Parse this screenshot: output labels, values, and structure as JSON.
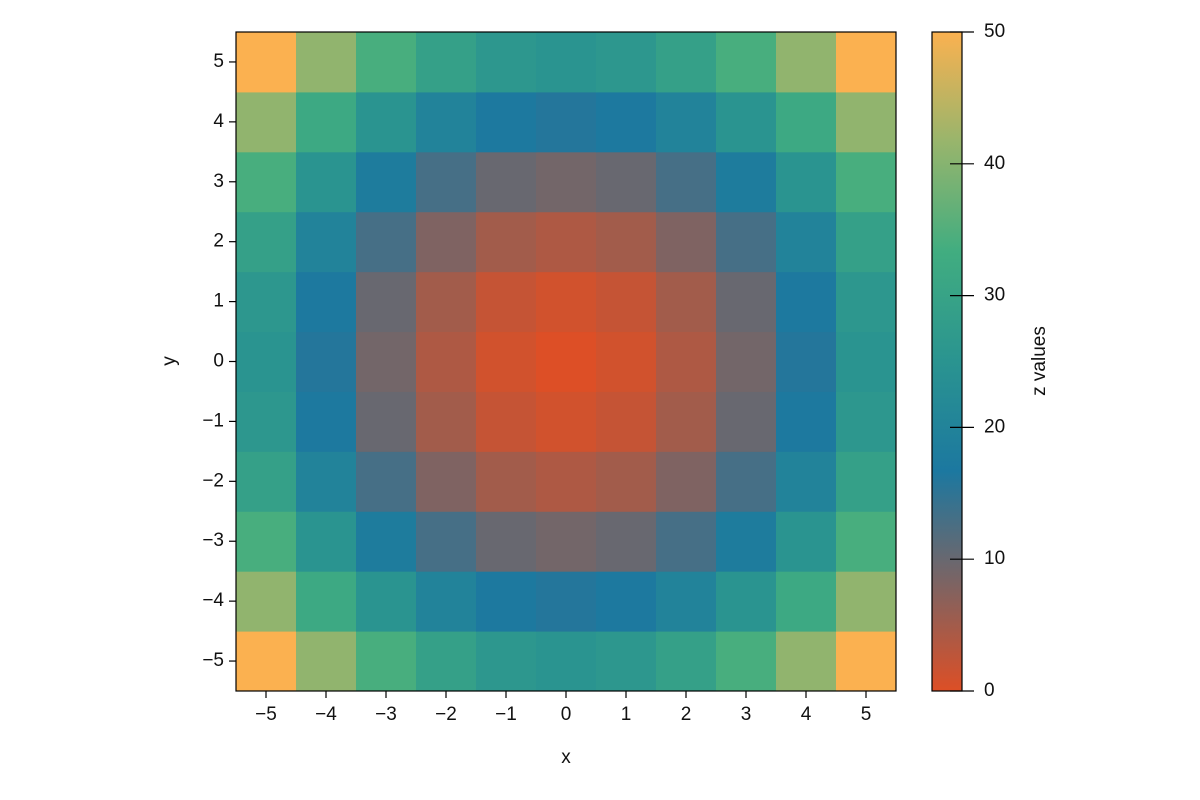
{
  "chart_data": {
    "type": "heatmap",
    "x": [
      -5,
      -4,
      -3,
      -2,
      -1,
      0,
      1,
      2,
      3,
      4,
      5
    ],
    "y": [
      -5,
      -4,
      -3,
      -2,
      -1,
      0,
      1,
      2,
      3,
      4,
      5
    ],
    "z": [
      [
        50,
        41,
        34,
        29,
        26,
        25,
        26,
        29,
        34,
        41,
        50
      ],
      [
        41,
        32,
        25,
        20,
        17,
        16,
        17,
        20,
        25,
        32,
        41
      ],
      [
        34,
        25,
        18,
        13,
        10,
        9,
        10,
        13,
        18,
        25,
        34
      ],
      [
        29,
        20,
        13,
        8,
        5,
        4,
        5,
        8,
        13,
        20,
        29
      ],
      [
        26,
        17,
        10,
        5,
        2,
        1,
        2,
        5,
        10,
        17,
        26
      ],
      [
        25,
        16,
        9,
        4,
        1,
        0,
        1,
        4,
        9,
        16,
        25
      ],
      [
        26,
        17,
        10,
        5,
        2,
        1,
        2,
        5,
        10,
        17,
        26
      ],
      [
        29,
        20,
        13,
        8,
        5,
        4,
        5,
        8,
        13,
        20,
        29
      ],
      [
        34,
        25,
        18,
        13,
        10,
        9,
        10,
        13,
        18,
        25,
        34
      ],
      [
        41,
        32,
        25,
        20,
        17,
        16,
        17,
        20,
        25,
        32,
        41
      ],
      [
        50,
        41,
        34,
        29,
        26,
        25,
        26,
        29,
        34,
        41,
        50
      ]
    ],
    "xlabel": "x",
    "ylabel": "y",
    "colorbar_label": "z values",
    "xlim": [
      -5.5,
      5.5
    ],
    "ylim": [
      -5.5,
      5.5
    ],
    "clim": [
      0,
      50
    ],
    "xticks": [
      {
        "value": -5,
        "label": "−5"
      },
      {
        "value": -4,
        "label": "−4"
      },
      {
        "value": -3,
        "label": "−3"
      },
      {
        "value": -2,
        "label": "−2"
      },
      {
        "value": -1,
        "label": "−1"
      },
      0,
      1,
      2,
      3,
      4,
      5
    ],
    "yticks": [
      {
        "value": -5,
        "label": "−5"
      },
      {
        "value": -4,
        "label": "−4"
      },
      {
        "value": -3,
        "label": "−3"
      },
      {
        "value": -2,
        "label": "−2"
      },
      {
        "value": -1,
        "label": "−1"
      },
      0,
      1,
      2,
      3,
      4,
      5
    ],
    "cticks": [
      0,
      10,
      20,
      30,
      40,
      50
    ],
    "colormap": [
      "#dd4f26",
      "#7b6464",
      "#1c78a0",
      "#2a9490",
      "#41ad80",
      "#98b56c",
      "#fbb150"
    ]
  }
}
